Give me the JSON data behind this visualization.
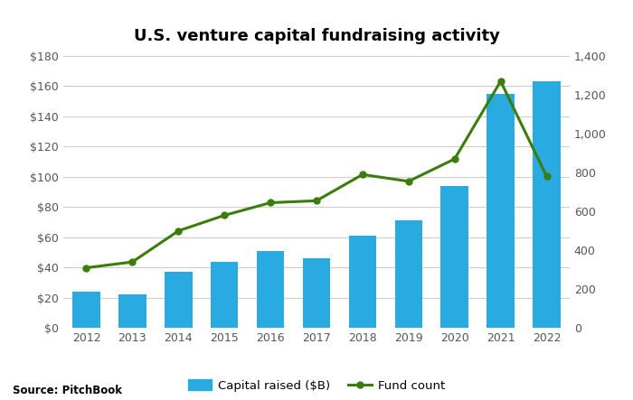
{
  "title": "U.S. venture capital fundraising activity",
  "years": [
    2012,
    2013,
    2014,
    2015,
    2016,
    2017,
    2018,
    2019,
    2020,
    2021,
    2022
  ],
  "capital_raised": [
    24,
    22,
    37,
    44,
    51,
    46,
    61,
    71,
    94,
    155,
    163
  ],
  "fund_count": [
    310,
    340,
    500,
    580,
    645,
    655,
    790,
    755,
    870,
    1270,
    780
  ],
  "bar_color": "#29ABE2",
  "line_color": "#3a7d0a",
  "left_ylim": [
    0,
    180
  ],
  "right_ylim": [
    0,
    1400
  ],
  "left_yticks": [
    0,
    20,
    40,
    60,
    80,
    100,
    120,
    140,
    160,
    180
  ],
  "left_yticklabels": [
    "$0",
    "$20",
    "$40",
    "$60",
    "$80",
    "$100",
    "$120",
    "$140",
    "$160",
    "$180"
  ],
  "right_yticks": [
    0,
    200,
    400,
    600,
    800,
    1000,
    1200,
    1400
  ],
  "right_yticklabels": [
    "0",
    "200",
    "400",
    "600",
    "800",
    "1,000",
    "1,200",
    "1,400"
  ],
  "source": "Source: PitchBook",
  "legend_bar_label": "Capital raised ($B)",
  "legend_line_label": "Fund count",
  "background_color": "#ffffff",
  "grid_color": "#cccccc",
  "bar_width": 0.6
}
